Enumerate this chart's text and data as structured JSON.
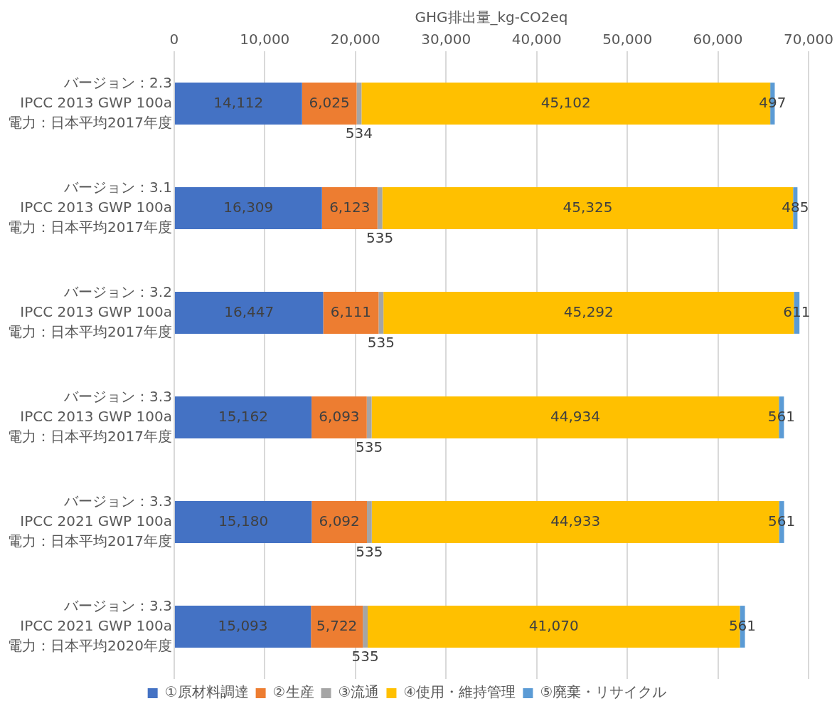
{
  "chart_data": {
    "type": "bar",
    "orientation": "horizontal",
    "stacked": true,
    "xlabel": "GHG排出量_kg-CO2eq",
    "categories": [
      "バージョン：2.3\nIPCC 2013 GWP 100a\n電力：日本平均2017年度",
      "バージョン：3.1\nIPCC 2013 GWP 100a\n電力：日本平均2017年度",
      "バージョン：3.2\nIPCC 2013 GWP 100a\n電力：日本平均2017年度",
      "バージョン：3.3\nIPCC 2013 GWP 100a\n電力：日本平均2017年度",
      "バージョン：3.3\nIPCC 2021 GWP 100a\n電力：日本平均2017年度",
      "バージョン：3.3\nIPCC 2021 GWP 100a\n電力：日本平均2020年度"
    ],
    "series": [
      {
        "name": "①原材料調達",
        "color": "#4472c4",
        "values": [
          14112,
          16309,
          16447,
          15162,
          15180,
          15093
        ],
        "value_labels": [
          "14,112",
          "16,309",
          "16,447",
          "15,162",
          "15,180",
          "15,093"
        ]
      },
      {
        "name": "②生産",
        "color": "#ed7d31",
        "values": [
          6025,
          6123,
          6111,
          6093,
          6092,
          5722
        ],
        "value_labels": [
          "6,025",
          "6,123",
          "6,111",
          "6,093",
          "6,092",
          "5,722"
        ]
      },
      {
        "name": "③流通",
        "color": "#a5a5a5",
        "values": [
          534,
          535,
          535,
          535,
          535,
          535
        ],
        "value_labels": [
          "534",
          "535",
          "535",
          "535",
          "535",
          "535"
        ]
      },
      {
        "name": "④使用・維持管理",
        "color": "#ffc000",
        "values": [
          45102,
          45325,
          45292,
          44934,
          44933,
          41070
        ],
        "value_labels": [
          "45,102",
          "45,325",
          "45,292",
          "44,934",
          "44,933",
          "41,070"
        ]
      },
      {
        "name": "⑤廃棄・リサイクル",
        "color": "#5b9bd5",
        "values": [
          497,
          485,
          611,
          561,
          561,
          561
        ],
        "value_labels": [
          "497",
          "485",
          "611",
          "561",
          "561",
          "561"
        ]
      }
    ],
    "xlim": [
      0,
      70000
    ],
    "xticks": [
      0,
      {
        "value": 10000,
        "label": "10,000"
      },
      {
        "value": 20000,
        "label": "20,000"
      },
      {
        "value": 30000,
        "label": "30,000"
      },
      {
        "value": 40000,
        "label": "40,000"
      },
      {
        "value": 50000,
        "label": "50,000"
      },
      {
        "value": 60000,
        "label": "60,000"
      },
      {
        "value": 70000,
        "label": "70,000"
      }
    ],
    "grid": "x",
    "legend": "bottom"
  }
}
